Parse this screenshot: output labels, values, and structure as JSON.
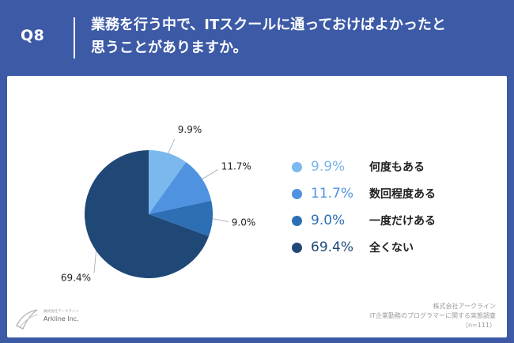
{
  "header": {
    "question_number": "Q8",
    "question_line1": "業務を行う中で、ITスクールに通っておけばよかったと",
    "question_line2": "思うことがありますか。"
  },
  "chart_data": {
    "type": "pie",
    "slices": [
      {
        "label": "何度もある",
        "value": 9.9,
        "display": "9.9%",
        "color": "#7ab8ee"
      },
      {
        "label": "数回程度ある",
        "value": 11.7,
        "display": "11.7%",
        "color": "#4f93e0"
      },
      {
        "label": "一度だけある",
        "value": 9.0,
        "display": "9.0%",
        "color": "#2d6fb5"
      },
      {
        "label": "全くない",
        "value": 69.4,
        "display": "69.4%",
        "color": "#1f4877"
      }
    ],
    "legend_position": "right"
  },
  "footer": {
    "company": "株式会社アークライン",
    "survey": "IT企業勤務のプログラマーに関する実態調査",
    "sample": "（n=111）"
  },
  "logo": {
    "small_text": "株式会社アークライン",
    "name": "Arkline Inc."
  }
}
